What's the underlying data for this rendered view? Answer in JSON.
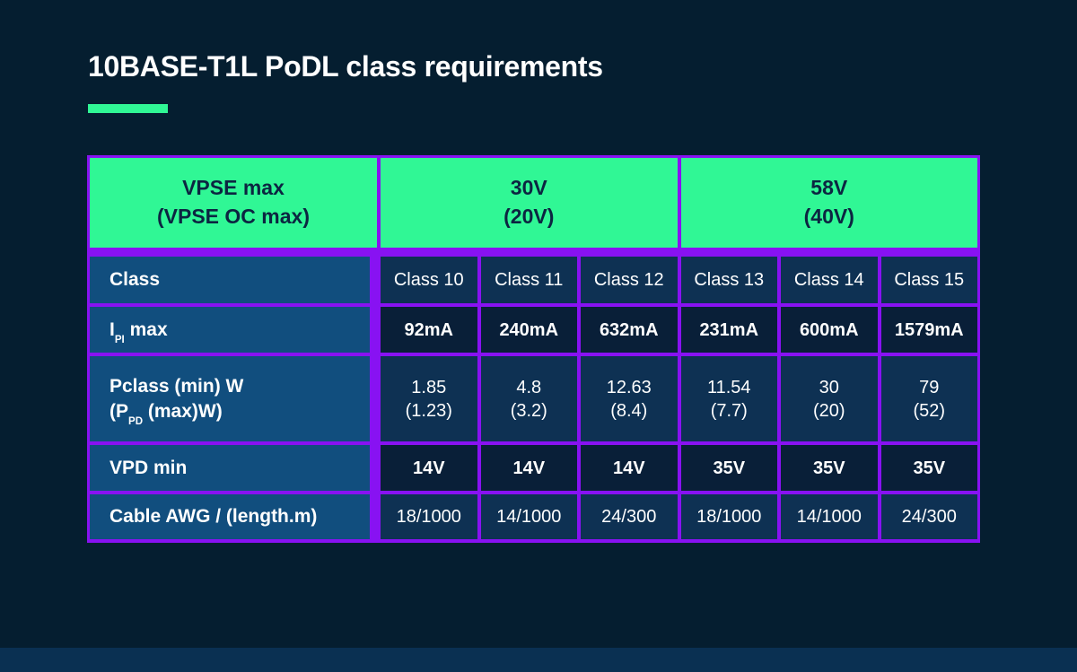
{
  "title": "10BASE-T1L PoDL class requirements",
  "colors": {
    "background": "#051e30",
    "accent_green": "#30f795",
    "border_purple": "#8812f2",
    "label_blue": "#114e7e",
    "row_light_navy": "#0e3153",
    "row_dark_navy": "#091f38",
    "header_text_navy": "#0c2541",
    "footer_strip": "#0a3052",
    "text_white": "#ffffff"
  },
  "table": {
    "header": {
      "vpse": {
        "line1": "VPSE max",
        "line2": "(VPSE OC max)"
      },
      "v30": {
        "line1": "30V",
        "line2": "(20V)"
      },
      "v58": {
        "line1": "58V",
        "line2": "(40V)"
      }
    },
    "rows": [
      {
        "label": "Class",
        "values": [
          "Class 10",
          "Class 11",
          "Class 12",
          "Class 13",
          "Class 14",
          "Class 15"
        ]
      },
      {
        "label_pre": "I",
        "label_sub": "PI",
        "label_post": " max",
        "values": [
          "92mA",
          "240mA",
          "632mA",
          "231mA",
          "600mA",
          "1579mA"
        ]
      },
      {
        "label_line1": "Pclass (min) W",
        "label2_pre": "(P",
        "label2_sub": "PD",
        "label2_post": " (max)W)",
        "values": [
          {
            "main": "1.85",
            "sub": "(1.23)"
          },
          {
            "main": "4.8",
            "sub": "(3.2)"
          },
          {
            "main": "12.63",
            "sub": "(8.4)"
          },
          {
            "main": "11.54",
            "sub": "(7.7)"
          },
          {
            "main": "30",
            "sub": "(20)"
          },
          {
            "main": "79",
            "sub": "(52)"
          }
        ]
      },
      {
        "label": "VPD min",
        "values": [
          "14V",
          "14V",
          "14V",
          "35V",
          "35V",
          "35V"
        ]
      },
      {
        "label": "Cable AWG / (length.m)",
        "values": [
          "18/1000",
          "14/1000",
          "24/300",
          "18/1000",
          "14/1000",
          "24/300"
        ]
      }
    ]
  },
  "chart_data": {
    "type": "table",
    "title": "10BASE-T1L PoDL class requirements",
    "column_groups": [
      {
        "label": "VPSE max (VPSE OC max)",
        "span": 1
      },
      {
        "label": "30V (20V)",
        "span": 3
      },
      {
        "label": "58V (40V)",
        "span": 3
      }
    ],
    "columns": [
      "Class 10",
      "Class 11",
      "Class 12",
      "Class 13",
      "Class 14",
      "Class 15"
    ],
    "rows": [
      {
        "label": "IPI max",
        "values": [
          "92mA",
          "240mA",
          "632mA",
          "231mA",
          "600mA",
          "1579mA"
        ]
      },
      {
        "label": "Pclass (min) W (PPD (max)W)",
        "values": [
          "1.85 (1.23)",
          "4.8 (3.2)",
          "12.63 (8.4)",
          "11.54 (7.7)",
          "30 (20)",
          "79 (52)"
        ]
      },
      {
        "label": "VPD min",
        "values": [
          "14V",
          "14V",
          "14V",
          "35V",
          "35V",
          "35V"
        ]
      },
      {
        "label": "Cable AWG / (length.m)",
        "values": [
          "18/1000",
          "14/1000",
          "24/300",
          "18/1000",
          "14/1000",
          "24/300"
        ]
      }
    ]
  }
}
